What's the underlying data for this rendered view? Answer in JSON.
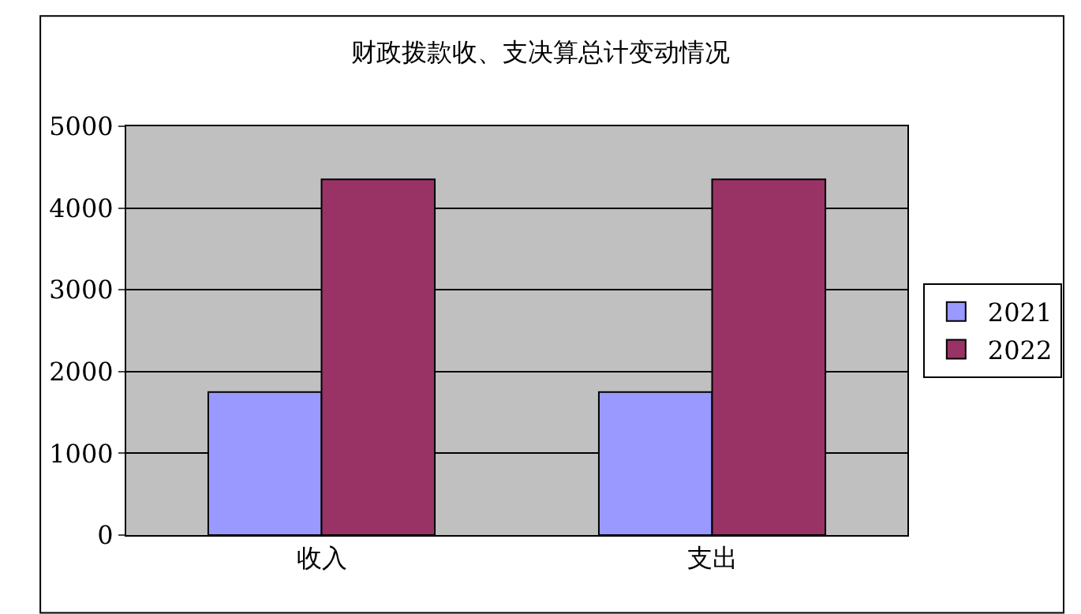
{
  "chart_data": {
    "type": "bar",
    "title": "财政拨款收、支决算总计变动情况",
    "categories": [
      "收入",
      "支出"
    ],
    "series": [
      {
        "name": "2021",
        "color": "#9999ff",
        "values": [
          1750,
          1750
        ]
      },
      {
        "name": "2022",
        "color": "#993366",
        "values": [
          4350,
          4350
        ]
      }
    ],
    "ylim": [
      0,
      5000
    ],
    "yticks": [
      0,
      1000,
      2000,
      3000,
      4000,
      5000
    ],
    "grid": "y",
    "legend": "right"
  }
}
